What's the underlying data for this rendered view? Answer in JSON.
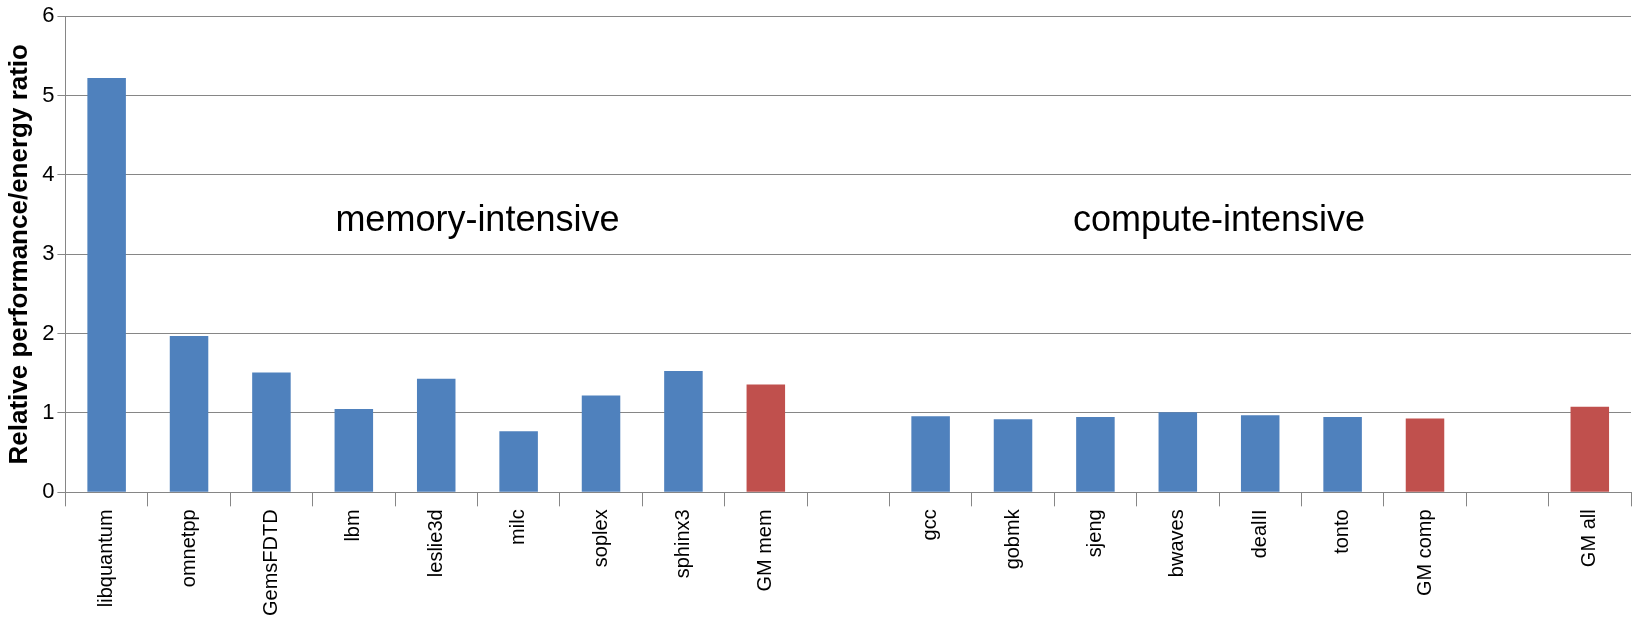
{
  "chart_data": {
    "type": "bar",
    "ylabel": "Relative performance/energy ratio",
    "categories": [
      "libquantum",
      "omnetpp",
      "GemsFDTD",
      "lbm",
      "leslie3d",
      "milc",
      "soplex",
      "sphinx3",
      "GM mem",
      null,
      "gcc",
      "gobmk",
      "sjeng",
      "bwaves",
      "dealII",
      "tonto",
      "GM comp",
      null,
      "GM all"
    ],
    "values": [
      5.22,
      1.97,
      1.51,
      1.05,
      1.43,
      0.77,
      1.22,
      1.53,
      1.36,
      null,
      0.96,
      0.92,
      0.95,
      1.01,
      0.97,
      0.95,
      0.93,
      null,
      1.08
    ],
    "colors": [
      "#4f81bd",
      "#4f81bd",
      "#4f81bd",
      "#4f81bd",
      "#4f81bd",
      "#4f81bd",
      "#4f81bd",
      "#4f81bd",
      "#c0504d",
      "#4f81bd",
      "#4f81bd",
      "#4f81bd",
      "#4f81bd",
      "#4f81bd",
      "#4f81bd",
      "#4f81bd",
      "#c0504d",
      "#4f81bd",
      "#c0504d"
    ],
    "ylim": [
      0,
      6
    ],
    "yticks": [
      0,
      1,
      2,
      3,
      4,
      5,
      6
    ],
    "grid": "y",
    "legend": false,
    "annotations": [
      "memory-intensive",
      "compute-intensive"
    ]
  }
}
